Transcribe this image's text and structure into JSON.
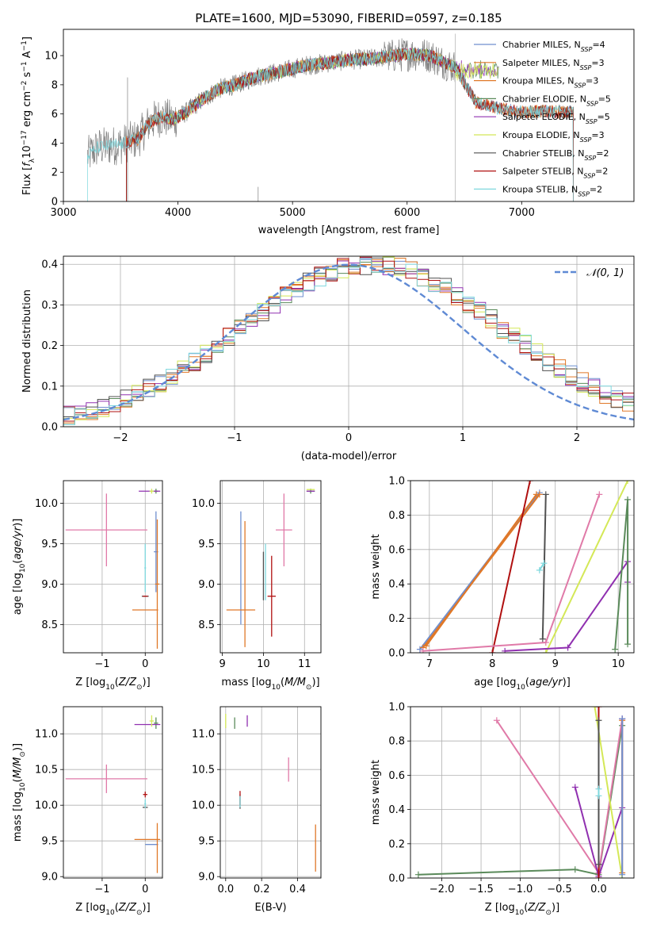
{
  "colors": {
    "Chabrier MILES": "#6f8fcf",
    "Salpeter MILES": "#e07828",
    "Kroupa MILES": "#e07828",
    "Chabrier ELODIE": "#5a8a5a",
    "Salpeter ELODIE": "#9030b0",
    "Kroupa ELODIE": "#d4e857",
    "Chabrier STELIB": "#505050",
    "Salpeter STELIB": "#b01010",
    "Kroupa STELIB": "#7fd8de",
    "pink": "#e07aa8",
    "gaussian": "#5f8ad4"
  },
  "chart_data": [
    {
      "id": "spectrum",
      "type": "line",
      "title": "PLATE=1600, MJD=53090, FIBERID=0597, z=0.185",
      "xlabel": "wavelength [Angstrom, rest frame]",
      "ylabel": "Flux [fλ10⁻¹⁷ erg cm⁻² s⁻¹ A⁻¹]",
      "xlim": [
        3000,
        7980
      ],
      "ylim": [
        0,
        11.8
      ],
      "xticks": [
        "3000",
        "4000",
        "5000",
        "6000",
        "7000"
      ],
      "yticks": [
        "0",
        "2",
        "4",
        "6",
        "8",
        "10"
      ],
      "legend_position": "top-right",
      "legend": [
        "Chabrier MILES, N_SSP=4",
        "Salpeter MILES, N_SSP=3",
        "Kroupa MILES, N_SSP=3",
        "Chabrier ELODIE, N_SSP=5",
        "Salpeter ELODIE, N_SSP=5",
        "Kroupa ELODIE, N_SSP=3",
        "Chabrier STELIB, N_SSP=2",
        "Salpeter STELIB, N_SSP=2",
        "Kroupa STELIB, N_SSP=2"
      ],
      "legend_display": [
        [
          "Chabrier MILES, N",
          "SSP",
          "=4"
        ],
        [
          "Salpeter MILES, N",
          "SSP",
          "=3"
        ],
        [
          "Kroupa MILES, N",
          "SSP",
          "=3"
        ],
        [
          "Chabrier ELODIE, N",
          "SSP",
          "=5"
        ],
        [
          "Salpeter ELODIE, N",
          "SSP",
          "=5"
        ],
        [
          "Kroupa ELODIE, N",
          "SSP",
          "=3"
        ],
        [
          "Chabrier STELIB, N",
          "SSP",
          "=2"
        ],
        [
          "Salpeter STELIB, N",
          "SSP",
          "=2"
        ],
        [
          "Kroupa STELIB, N",
          "SSP",
          "=2"
        ]
      ],
      "legend_colors": [
        "Chabrier MILES",
        "Salpeter MILES",
        "Kroupa MILES",
        "Chabrier ELODIE",
        "Salpeter ELODIE",
        "Kroupa ELODIE",
        "Chabrier STELIB",
        "Salpeter STELIB",
        "Kroupa STELIB"
      ],
      "continuum": {
        "x": [
          3210,
          3300,
          3500,
          3650,
          3750,
          3850,
          3950,
          4050,
          4200,
          4350,
          4500,
          4700,
          4900,
          5100,
          5300,
          5500,
          5700,
          5900,
          6000,
          6100,
          6200,
          6300,
          6420,
          6600,
          6800,
          7000,
          7200,
          7400
        ],
        "y": [
          3.1,
          3.7,
          3.9,
          4.3,
          5.4,
          5.8,
          5.6,
          6.0,
          6.9,
          7.7,
          8.0,
          8.6,
          8.9,
          9.3,
          9.5,
          9.7,
          9.8,
          10.0,
          10.1,
          10.1,
          10.0,
          9.6,
          9.2,
          6.8,
          6.4,
          6.1,
          6.2,
          6.1
        ]
      },
      "model_range": [
        3550,
        7450
      ],
      "data_range": [
        3210,
        6420
      ]
    },
    {
      "id": "residuals",
      "type": "line",
      "xlabel": "(data-model)/error",
      "ylabel": "Normed distribution",
      "xlim": [
        -2.5,
        2.5
      ],
      "ylim": [
        0,
        0.42
      ],
      "xticks": [
        "−2",
        "−1",
        "0",
        "1",
        "2"
      ],
      "yticks": [
        "0.0",
        "0.1",
        "0.2",
        "0.3",
        "0.4"
      ],
      "legend_position": "top-right",
      "legend": [
        "𝒩(0, 1)"
      ],
      "gaussian": {
        "mean": 0,
        "sigma": 1
      },
      "histogram_center_shift": 0.2,
      "histogram_sigma": 1.15,
      "bin_width": 0.1
    },
    {
      "id": "age_vs_Z",
      "type": "scatter",
      "xlabel": "Z [log10(Z/Z⊙)]",
      "ylabel": "age [log10(age/yr)]",
      "xlim": [
        -1.9,
        0.4
      ],
      "ylim": [
        8.15,
        10.28
      ],
      "xticks": [
        "−1",
        "0"
      ],
      "yticks": [
        "8.5",
        "9.0",
        "9.5",
        "10.0"
      ],
      "points": [
        {
          "model": "Chabrier MILES",
          "x": 0.25,
          "xerr": 0.05,
          "y": 9.4,
          "yerr": 0.5
        },
        {
          "model": "Salpeter MILES",
          "x": 0.28,
          "xerr": 0.05,
          "y": 9.0,
          "yerr": 0.8
        },
        {
          "model": "Kroupa MILES",
          "x": 0.0,
          "xerr": 0.3,
          "y": 8.68,
          "yerr": 0.0
        },
        {
          "model": "pink",
          "x": -0.9,
          "xerr": 0.95,
          "y": 9.67,
          "yerr": 0.45
        },
        {
          "model": "Chabrier ELODIE",
          "x": 0.25,
          "xerr": 0.05,
          "y": 10.15,
          "yerr": 0.03
        },
        {
          "model": "Salpeter ELODIE",
          "x": 0.1,
          "xerr": 0.25,
          "y": 10.15,
          "yerr": 0.0
        },
        {
          "model": "Kroupa ELODIE",
          "x": 0.15,
          "xerr": 0.05,
          "y": 10.15,
          "yerr": 0.03
        },
        {
          "model": "Chabrier STELIB",
          "x": 0.0,
          "xerr": 0.08,
          "y": 8.85,
          "yerr": 0.0
        },
        {
          "model": "Salpeter STELIB",
          "x": 0.0,
          "xerr": 0.06,
          "y": 8.85,
          "yerr": 0.0
        },
        {
          "model": "Kroupa STELIB",
          "x": 0.0,
          "xerr": 0.02,
          "y": 9.2,
          "yerr": 0.3
        }
      ]
    },
    {
      "id": "age_vs_mass",
      "type": "scatter",
      "xlabel": "mass [log10(M/M⊙)]",
      "ylabel": "",
      "xlim": [
        8.95,
        11.4
      ],
      "ylim": [
        8.15,
        10.28
      ],
      "xticks": [
        "9",
        "10",
        "11"
      ],
      "yticks": [
        "8.5",
        "9.0",
        "9.5",
        "10.0"
      ],
      "points": [
        {
          "model": "Chabrier MILES",
          "x": 9.45,
          "xerr": 0.0,
          "y": 9.2,
          "yerr": 0.7
        },
        {
          "model": "Salpeter MILES",
          "x": 9.55,
          "xerr": 0.0,
          "y": 9.0,
          "yerr": 0.78
        },
        {
          "model": "Kroupa MILES",
          "x": 9.45,
          "xerr": 0.35,
          "y": 8.68,
          "yerr": 0.0
        },
        {
          "model": "pink",
          "x": 10.5,
          "xerr": 0.2,
          "y": 9.67,
          "yerr": 0.45
        },
        {
          "model": "Chabrier ELODIE",
          "x": 11.15,
          "xerr": 0.1,
          "y": 10.15,
          "yerr": 0.03
        },
        {
          "model": "Salpeter ELODIE",
          "x": 11.15,
          "xerr": 0.1,
          "y": 10.15,
          "yerr": 0.0
        },
        {
          "model": "Kroupa ELODIE",
          "x": 11.15,
          "xerr": 0.1,
          "y": 10.17,
          "yerr": 0.0
        },
        {
          "model": "Chabrier STELIB",
          "x": 10.0,
          "xerr": 0.0,
          "y": 9.1,
          "yerr": 0.3
        },
        {
          "model": "Salpeter STELIB",
          "x": 10.2,
          "xerr": 0.1,
          "y": 8.85,
          "yerr": 0.5
        },
        {
          "model": "Kroupa STELIB",
          "x": 10.05,
          "xerr": 0.0,
          "y": 9.15,
          "yerr": 0.35
        }
      ]
    },
    {
      "id": "massweight_vs_age",
      "type": "line",
      "xlabel": "age [log10(age/yr)]",
      "ylabel": "mass weight",
      "xlim": [
        6.7,
        10.25
      ],
      "ylim": [
        0,
        1.0
      ],
      "xticks": [
        "7",
        "8",
        "9",
        "10"
      ],
      "yticks": [
        "0.0",
        "0.2",
        "0.4",
        "0.6",
        "0.8",
        "1.0"
      ],
      "series": [
        {
          "model": "Chabrier MILES",
          "x": [
            6.85,
            8.75
          ],
          "y": [
            0.02,
            0.93
          ]
        },
        {
          "model": "Salpeter MILES",
          "x": [
            6.9,
            8.75
          ],
          "y": [
            0.03,
            0.92
          ]
        },
        {
          "model": "Kroupa MILES",
          "x": [
            6.95,
            8.7
          ],
          "y": [
            0.04,
            0.92
          ]
        },
        {
          "model": "Chabrier STELIB",
          "x": [
            8.8,
            8.85
          ],
          "y": [
            0.08,
            0.92
          ]
        },
        {
          "model": "Salpeter STELIB",
          "x": [
            8.0,
            8.6
          ],
          "y": [
            0.0,
            1.0
          ]
        },
        {
          "model": "Kroupa STELIB",
          "x": [
            8.75,
            8.82
          ],
          "y": [
            0.48,
            0.52
          ]
        },
        {
          "model": "pink",
          "x": [
            6.9,
            8.85,
            9.7
          ],
          "y": [
            0.01,
            0.06,
            0.92
          ]
        },
        {
          "model": "Kroupa ELODIE",
          "x": [
            8.85,
            10.15
          ],
          "y": [
            0.0,
            1.0
          ]
        },
        {
          "model": "Salpeter ELODIE",
          "x": [
            8.2,
            9.2,
            10.15,
            10.15
          ],
          "y": [
            0.01,
            0.03,
            0.53,
            0.41
          ]
        },
        {
          "model": "Chabrier ELODIE",
          "x": [
            9.95,
            10.15,
            10.15
          ],
          "y": [
            0.02,
            0.89,
            0.05
          ]
        }
      ]
    },
    {
      "id": "mass_vs_Z",
      "type": "scatter",
      "xlabel": "Z [log10(Z/Z⊙)]",
      "ylabel": "mass [log10(M/M⊙)]",
      "xlim": [
        -1.9,
        0.4
      ],
      "ylim": [
        8.98,
        11.38
      ],
      "xticks": [
        "−1",
        "0"
      ],
      "yticks": [
        "9.0",
        "9.5",
        "10.0",
        "10.5",
        "11.0"
      ],
      "points": [
        {
          "model": "Chabrier MILES",
          "x": 0.15,
          "xerr": 0.15,
          "y": 9.45,
          "yerr": 0.0
        },
        {
          "model": "Salpeter MILES",
          "x": 0.28,
          "xerr": 0.0,
          "y": 9.4,
          "yerr": 0.35
        },
        {
          "model": "Kroupa MILES",
          "x": 0.05,
          "xerr": 0.3,
          "y": 9.52,
          "yerr": 0.0
        },
        {
          "model": "pink",
          "x": -0.9,
          "xerr": 0.95,
          "y": 10.37,
          "yerr": 0.2
        },
        {
          "model": "Chabrier ELODIE",
          "x": 0.25,
          "xerr": 0.05,
          "y": 11.15,
          "yerr": 0.08
        },
        {
          "model": "Salpeter ELODIE",
          "x": 0.05,
          "xerr": 0.3,
          "y": 11.13,
          "yerr": 0.0
        },
        {
          "model": "Kroupa ELODIE",
          "x": 0.15,
          "xerr": 0.05,
          "y": 11.18,
          "yerr": 0.08
        },
        {
          "model": "Chabrier STELIB",
          "x": 0.0,
          "xerr": 0.06,
          "y": 9.97,
          "yerr": 0.0
        },
        {
          "model": "Salpeter STELIB",
          "x": 0.0,
          "xerr": 0.05,
          "y": 10.15,
          "yerr": 0.04
        },
        {
          "model": "Kroupa STELIB",
          "x": 0.0,
          "xerr": 0.02,
          "y": 10.02,
          "yerr": 0.06
        }
      ]
    },
    {
      "id": "mass_vs_EBV",
      "type": "scatter",
      "xlabel": "E(B-V)",
      "ylabel": "",
      "xlim": [
        -0.03,
        0.53
      ],
      "ylim": [
        8.98,
        11.38
      ],
      "xticks": [
        "0.0",
        "0.2",
        "0.4"
      ],
      "yticks": [
        "9.0",
        "9.5",
        "10.0",
        "10.5",
        "11.0"
      ],
      "points": [
        {
          "model": "Salpeter MILES",
          "x": 0.5,
          "xerr": 0.0,
          "y": 9.4,
          "yerr": 0.33
        },
        {
          "model": "pink",
          "x": 0.35,
          "xerr": 0.0,
          "y": 10.5,
          "yerr": 0.17
        },
        {
          "model": "Chabrier ELODIE",
          "x": 0.05,
          "xerr": 0.0,
          "y": 11.15,
          "yerr": 0.08
        },
        {
          "model": "Salpeter ELODIE",
          "x": 0.12,
          "xerr": 0.0,
          "y": 11.18,
          "yerr": 0.08
        },
        {
          "model": "Kroupa ELODIE",
          "x": 0.0,
          "xerr": 0.0,
          "y": 11.18,
          "yerr": 0.1
        },
        {
          "model": "Chabrier STELIB",
          "x": 0.08,
          "xerr": 0.0,
          "y": 10.05,
          "yerr": 0.1
        },
        {
          "model": "Salpeter STELIB",
          "x": 0.08,
          "xerr": 0.0,
          "y": 10.1,
          "yerr": 0.1
        },
        {
          "model": "Kroupa STELIB",
          "x": 0.08,
          "xerr": 0.0,
          "y": 10.05,
          "yerr": 0.08
        }
      ]
    },
    {
      "id": "massweight_vs_Z",
      "type": "line",
      "xlabel": "Z [log10(Z/Z⊙)]",
      "ylabel": "mass weight",
      "xlim": [
        -2.4,
        0.45
      ],
      "ylim": [
        0,
        1.0
      ],
      "xticks": [
        "−2.0",
        "−1.5",
        "−1.0",
        "−0.5",
        "0.0"
      ],
      "yticks": [
        "0.0",
        "0.2",
        "0.4",
        "0.6",
        "0.8",
        "1.0"
      ],
      "series": [
        {
          "model": "Chabrier ELODIE",
          "x": [
            -2.3,
            -0.3,
            0.0,
            0.3
          ],
          "y": [
            0.02,
            0.05,
            0.02,
            0.89
          ]
        },
        {
          "model": "pink",
          "x": [
            -1.3,
            0.0,
            0.3
          ],
          "y": [
            0.92,
            0.03,
            0.93
          ]
        },
        {
          "model": "Salpeter ELODIE",
          "x": [
            -0.3,
            0.0,
            0.3,
            0.3
          ],
          "y": [
            0.53,
            0.01,
            0.41,
            0.93
          ]
        },
        {
          "model": "Kroupa ELODIE",
          "x": [
            -0.05,
            0.3
          ],
          "y": [
            1.0,
            0.0
          ]
        },
        {
          "model": "Salpeter STELIB",
          "x": [
            0.0,
            0.0
          ],
          "y": [
            0.0,
            1.0
          ]
        },
        {
          "model": "Chabrier STELIB",
          "x": [
            0.0,
            0.0
          ],
          "y": [
            0.08,
            0.92
          ]
        },
        {
          "model": "Kroupa STELIB",
          "x": [
            0.0,
            0.0
          ],
          "y": [
            0.48,
            0.52
          ]
        },
        {
          "model": "Salpeter MILES",
          "x": [
            0.3,
            0.3
          ],
          "y": [
            0.03,
            0.92
          ]
        },
        {
          "model": "Chabrier MILES",
          "x": [
            0.3,
            0.3
          ],
          "y": [
            0.02,
            0.93
          ]
        }
      ]
    }
  ]
}
